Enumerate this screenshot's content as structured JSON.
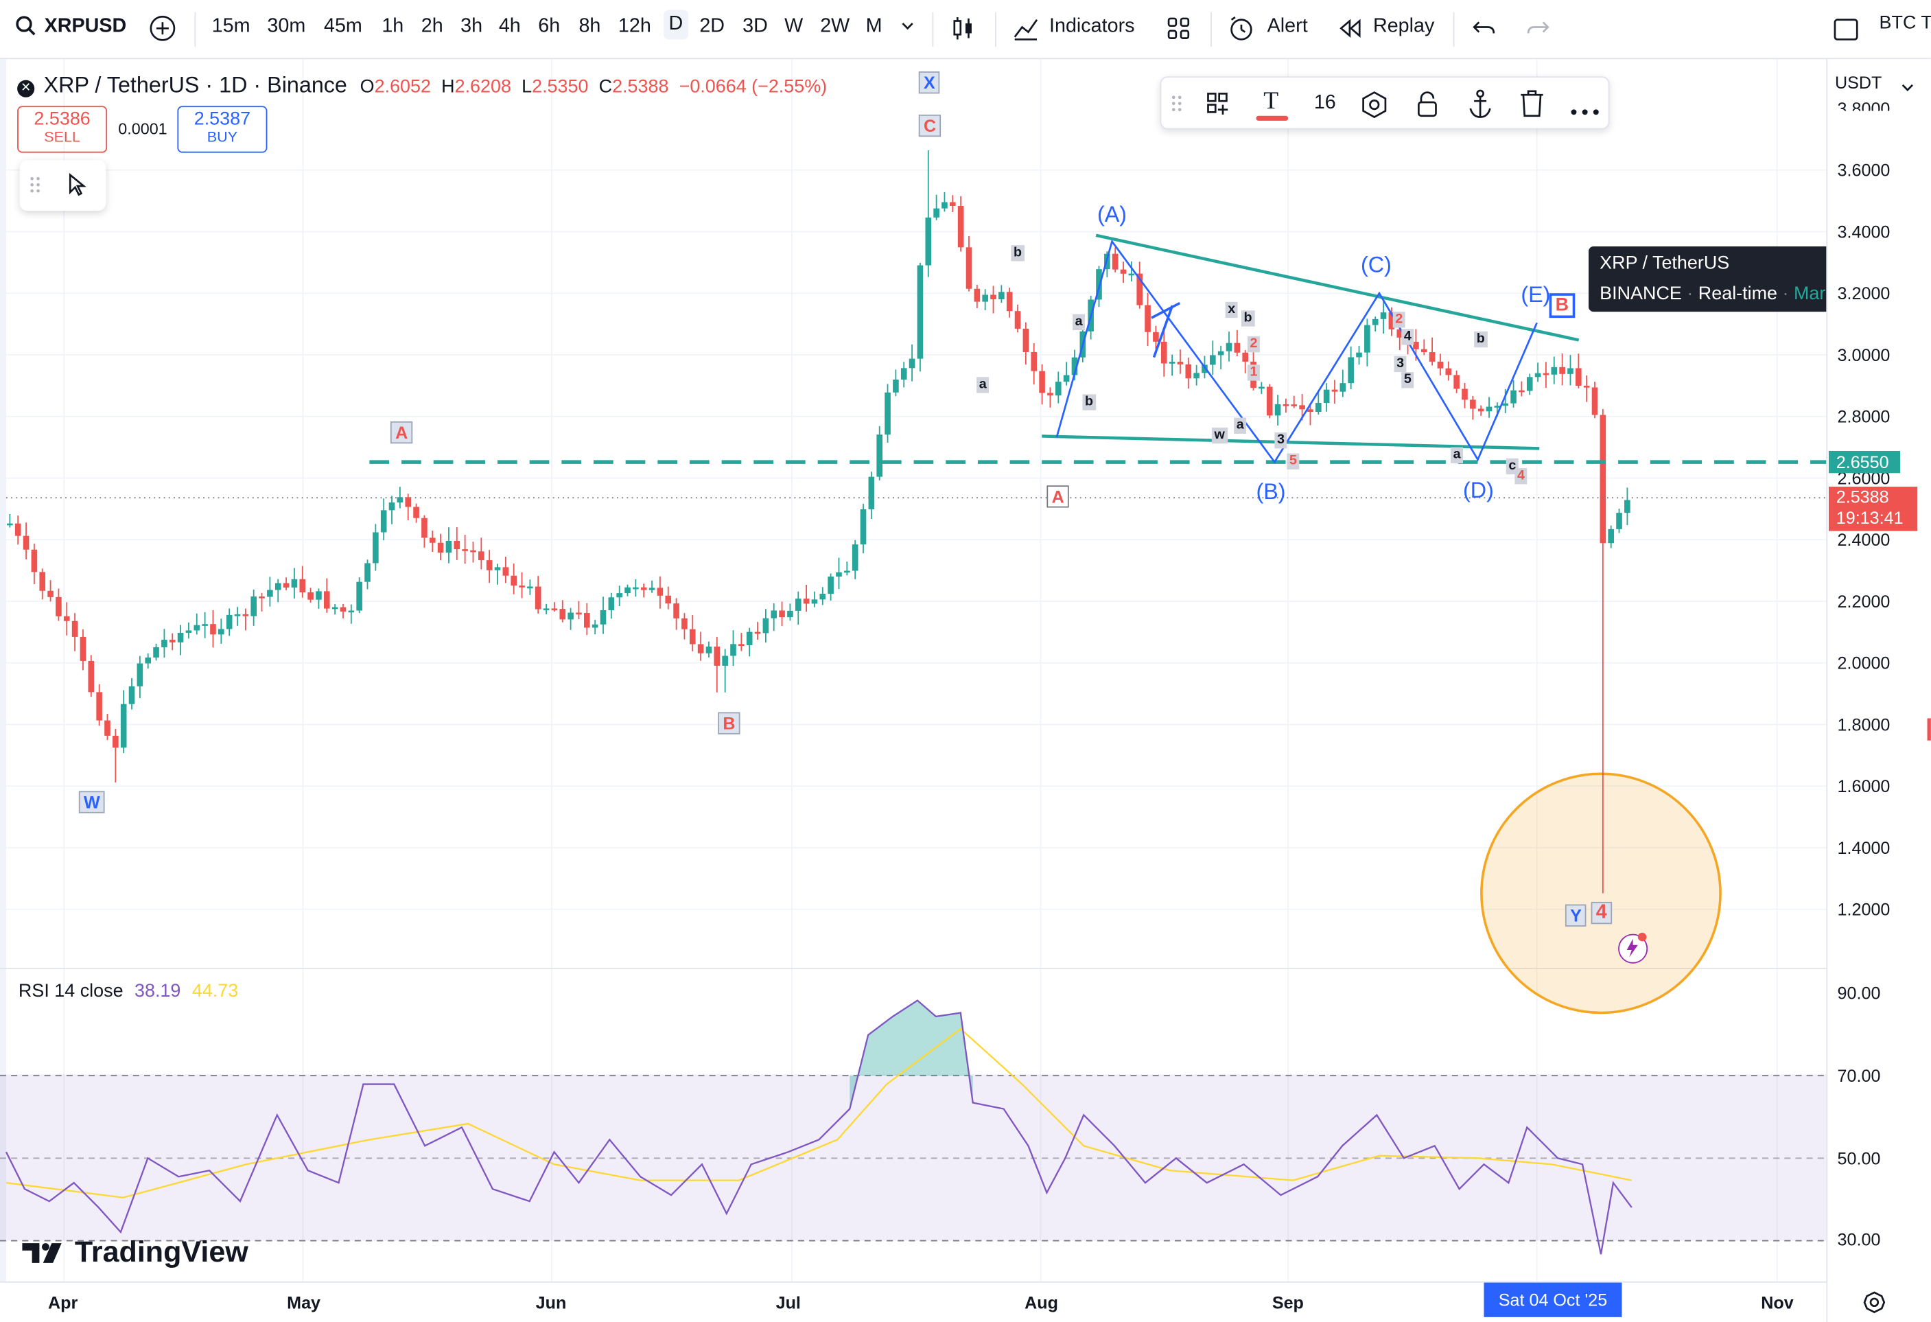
{
  "toolbar": {
    "symbol": "XRPUSD",
    "timeframes": [
      "15m",
      "30m",
      "45m",
      "1h",
      "2h",
      "3h",
      "4h",
      "6h",
      "8h",
      "12h",
      "D",
      "2D",
      "3D",
      "W",
      "2W",
      "M"
    ],
    "indicators": "Indicators",
    "alert": "Alert",
    "replay": "Replay",
    "right_text": "BTC T"
  },
  "legend": {
    "title": "XRP / TetherUS · 1D · Binance",
    "o_label": "O",
    "o": "2.6052",
    "h_label": "H",
    "h": "2.6208",
    "l_label": "L",
    "l": "2.5350",
    "c_label": "C",
    "c": "2.5388",
    "change": "−0.0664 (−2.55%)"
  },
  "trade": {
    "sell_price": "2.5386",
    "sell_label": "SELL",
    "spread": "0.0001",
    "buy_price": "2.5387",
    "buy_label": "BUY"
  },
  "drawing_toolbar": {
    "font_size": "16"
  },
  "price_axis": {
    "currency": "USDT",
    "ticks": [
      "3.8000",
      "3.6000",
      "3.4000",
      "3.2000",
      "3.0000",
      "2.8000",
      "2.6000",
      "2.4000",
      "2.2000",
      "2.0000",
      "1.8000",
      "1.6000",
      "1.4000",
      "1.2000"
    ],
    "level_label": "2.6550",
    "last_price": "2.5388",
    "countdown": "19:13:41"
  },
  "rsi": {
    "title": "RSI 14 close",
    "value": "38.19",
    "ma": "44.73",
    "ticks": [
      "90.00",
      "70.00",
      "50.00",
      "30.00"
    ]
  },
  "time_axis": {
    "ticks": [
      "Apr",
      "May",
      "Jun",
      "Jul",
      "Aug",
      "Sep",
      "Oct",
      "Nov"
    ],
    "cursor": "Sat 04 Oct '25"
  },
  "tooltip": {
    "title": "XRP / TetherUS",
    "exchange": "BINANCE",
    "realtime": "Real-time",
    "status": "Market open"
  },
  "waves": {
    "W": "W",
    "A": "A",
    "B": "B",
    "C": "C",
    "X": "X",
    "A2": "A",
    "Y": "Y",
    "B2": "B",
    "four": "4",
    "pA": "(A)",
    "pB": "(B)",
    "pC": "(C)",
    "pD": "(D)",
    "pE": "(E)"
  },
  "brand": "TradingView",
  "colors": {
    "up": "#26a69a",
    "down": "#ef5350",
    "blue": "#2962ff",
    "level": "#26a69a",
    "rsi": "#7e57c2",
    "rsi_ma": "#fdd835",
    "circle": "#f5a623"
  }
}
